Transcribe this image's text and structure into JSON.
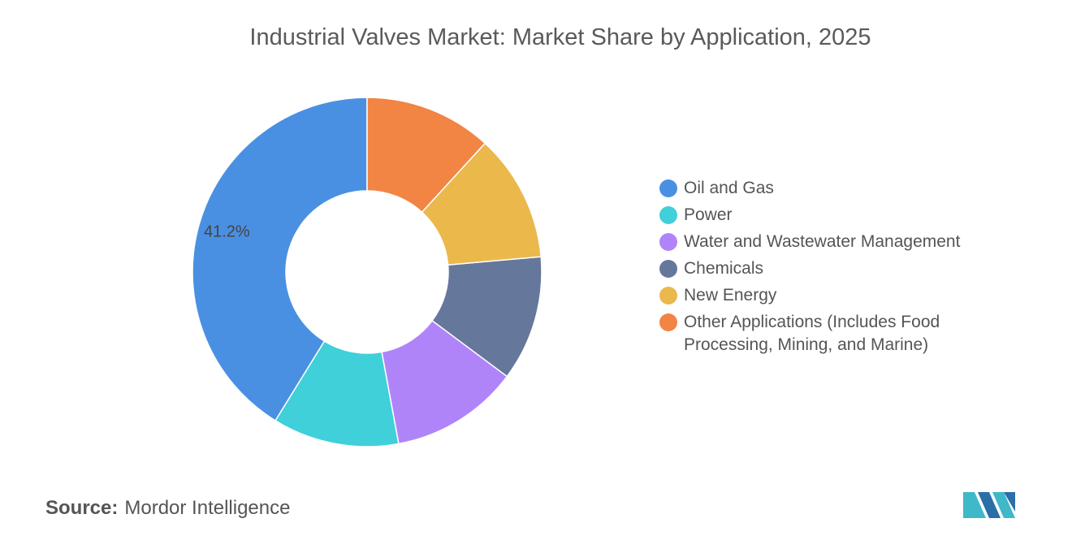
{
  "chart_data": {
    "type": "donut",
    "title": "Industrial Valves Market: Market Share by Application, 2025",
    "categories": [
      "Oil and Gas",
      "Power",
      "Water and Wastewater Management",
      "Chemicals",
      "New Energy",
      "Other Applications (Includes Food Processing, Mining, and Marine)"
    ],
    "values": [
      41.2,
      11.7,
      11.9,
      11.6,
      11.8,
      11.8
    ],
    "value_labels": [
      "41.2%",
      null,
      null,
      null,
      null,
      null
    ],
    "colors": [
      "#4a90e2",
      "#3fd0d9",
      "#b084f9",
      "#65789b",
      "#ebb84b",
      "#f28444"
    ],
    "direction": "counterclockwise",
    "legend": "right"
  },
  "source_label": "Source:",
  "source": "Mordor Intelligence"
}
